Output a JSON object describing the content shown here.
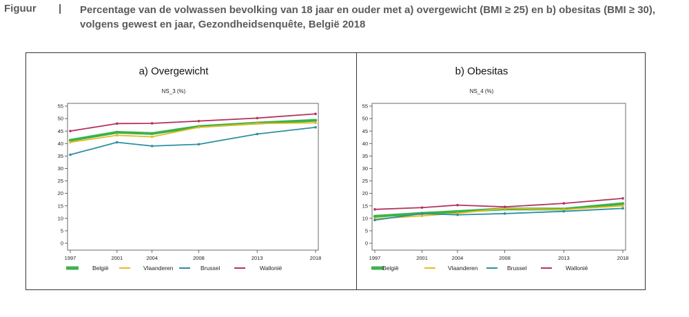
{
  "caption": {
    "label": "Figuur",
    "separator": "|",
    "text": "Percentage van de volwassen bevolking van 18 jaar en ouder met a) overgewicht (BMI ≥ 25) en b) obesitas (BMI ≥ 30), volgens gewest en jaar, Gezondheidsenquête, België 2018"
  },
  "colors": {
    "Belgie": "#3cb34a",
    "Vlaanderen": "#e8b923",
    "Brussel": "#2b8fa0",
    "Wallonie": "#b5325f"
  },
  "chart_data": [
    {
      "type": "line",
      "title": "a) Overgewicht",
      "subtitle": "NS_3 (%)",
      "x": [
        "1997",
        "2001",
        "2004",
        "2008",
        "2013",
        "2018"
      ],
      "x_positions": [
        1997,
        2001,
        2004,
        2008,
        2013,
        2018
      ],
      "ylim": [
        0,
        55
      ],
      "yticks": [
        0,
        5,
        10,
        15,
        20,
        25,
        30,
        35,
        40,
        45,
        50,
        55
      ],
      "grid": false,
      "legend_position": "bottom",
      "series": [
        {
          "name": "België",
          "color_key": "Belgie",
          "values": [
            41.3,
            44.5,
            44.0,
            46.8,
            48.2,
            49.3
          ]
        },
        {
          "name": "Vlaanderen",
          "color_key": "Vlaanderen",
          "values": [
            40.5,
            43.3,
            42.7,
            46.5,
            48.0,
            48.3
          ]
        },
        {
          "name": "Brussel",
          "color_key": "Brussel",
          "values": [
            35.5,
            40.5,
            39.0,
            39.7,
            43.8,
            46.5
          ]
        },
        {
          "name": "Wallonië",
          "color_key": "Wallonie",
          "values": [
            45.0,
            48.0,
            48.1,
            49.0,
            50.2,
            51.9
          ]
        }
      ]
    },
    {
      "type": "line",
      "title": "b) Obesitas",
      "subtitle": "NS_4 (%)",
      "x": [
        "1997",
        "2001",
        "2004",
        "2008",
        "2013",
        "2018"
      ],
      "x_positions": [
        1997,
        2001,
        2004,
        2008,
        2013,
        2018
      ],
      "ylim": [
        0,
        55
      ],
      "yticks": [
        0,
        5,
        10,
        15,
        20,
        25,
        30,
        35,
        40,
        45,
        50,
        55
      ],
      "grid": false,
      "legend_position": "bottom",
      "series": [
        {
          "name": "België",
          "color_key": "Belgie",
          "values": [
            10.8,
            12.0,
            12.7,
            13.8,
            13.7,
            15.9
          ]
        },
        {
          "name": "Vlaanderen",
          "color_key": "Vlaanderen",
          "values": [
            9.8,
            11.0,
            12.0,
            14.0,
            13.5,
            15.0
          ]
        },
        {
          "name": "Brussel",
          "color_key": "Brussel",
          "values": [
            9.3,
            11.9,
            11.4,
            11.9,
            12.8,
            14.0
          ]
        },
        {
          "name": "Wallonië",
          "color_key": "Wallonie",
          "values": [
            13.6,
            14.3,
            15.3,
            14.6,
            16.0,
            18.0
          ]
        }
      ]
    }
  ]
}
